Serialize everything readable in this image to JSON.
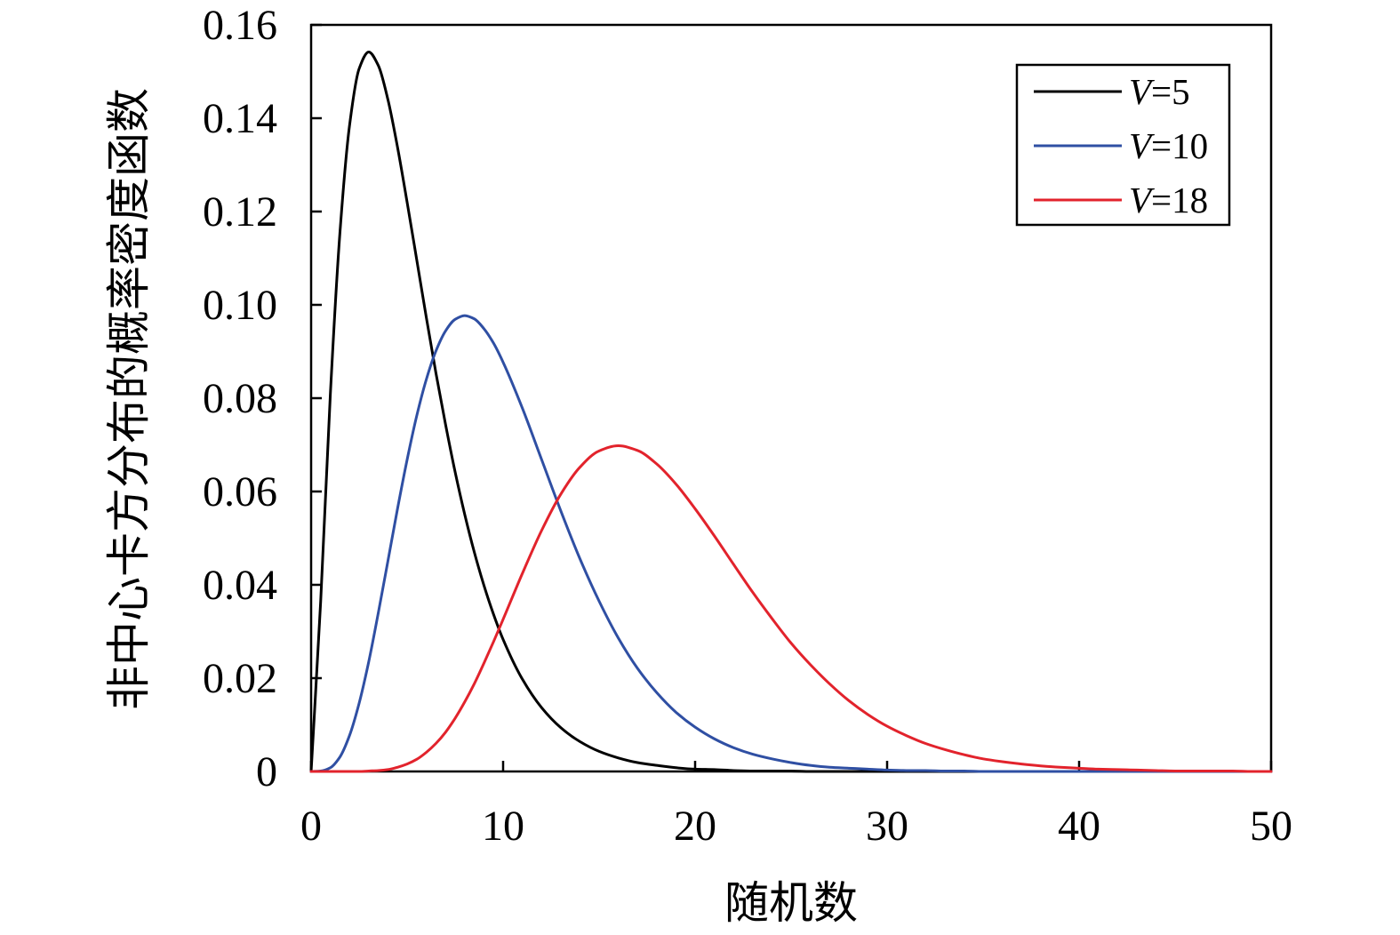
{
  "chart_data": {
    "type": "line",
    "xlabel": "随机数",
    "ylabel": "非中心卡方分布的概率密度函数",
    "xlim": [
      0,
      50
    ],
    "ylim": [
      0,
      0.16
    ],
    "x_ticks": [
      "0",
      "10",
      "20",
      "30",
      "40",
      "50"
    ],
    "y_ticks": [
      "0",
      "0.02",
      "0.04",
      "0.06",
      "0.08",
      "0.10",
      "0.12",
      "0.14",
      "0.16"
    ],
    "grid": false,
    "legend_position": "top-right",
    "x": [
      0,
      0.5,
      1,
      1.5,
      2,
      2.5,
      3,
      3.5,
      4,
      4.5,
      5,
      5.5,
      6,
      6.5,
      7,
      7.5,
      8,
      8.5,
      9,
      9.5,
      10,
      11,
      12,
      13,
      14,
      15,
      16,
      17,
      18,
      19,
      20,
      21,
      22,
      23,
      24,
      25,
      26,
      27,
      28,
      29,
      30,
      31,
      32,
      33,
      34,
      35,
      36,
      37,
      38,
      39,
      40,
      41,
      42,
      43,
      44,
      45,
      46,
      47,
      48,
      49,
      50
    ],
    "series": [
      {
        "name": "V=5",
        "color": "#000000",
        "values": [
          0,
          0.0366,
          0.0807,
          0.1154,
          0.1384,
          0.1506,
          0.1542,
          0.1513,
          0.144,
          0.1338,
          0.122,
          0.1097,
          0.0973,
          0.0854,
          0.0744,
          0.0642,
          0.0551,
          0.047,
          0.0399,
          0.0337,
          0.0283,
          0.0198,
          0.0137,
          0.0094,
          0.0064,
          0.0043,
          0.0029,
          0.0019,
          0.0013,
          0.0008,
          0.0005,
          0.0004,
          0.0002,
          0.0001,
          0.0001,
          0.0001,
          0,
          0,
          0,
          0,
          0,
          0,
          0,
          0,
          0,
          0,
          0,
          0,
          0,
          0,
          0,
          0,
          0,
          0,
          0,
          0,
          0,
          0,
          0,
          0,
          0
        ]
      },
      {
        "name": "V=10",
        "color": "#2f4fa3",
        "values": [
          0,
          0.0001,
          0.0008,
          0.0031,
          0.0077,
          0.0146,
          0.0235,
          0.034,
          0.0451,
          0.0563,
          0.0668,
          0.0762,
          0.084,
          0.0901,
          0.0944,
          0.0969,
          0.0977,
          0.097,
          0.0949,
          0.0918,
          0.0877,
          0.0779,
          0.0669,
          0.0559,
          0.0456,
          0.0365,
          0.0286,
          0.0221,
          0.0169,
          0.0127,
          0.0095,
          0.007,
          0.0051,
          0.0037,
          0.0027,
          0.0019,
          0.0013,
          0.0009,
          0.0007,
          0.0005,
          0.0003,
          0.0002,
          0.0002,
          0.0001,
          0.0001,
          0,
          0,
          0,
          0,
          0,
          0,
          0,
          0,
          0,
          0,
          0,
          0,
          0,
          0,
          0,
          0
        ]
      },
      {
        "name": "V=18",
        "color": "#e2232c",
        "values": [
          0,
          0,
          0,
          0,
          0,
          0,
          0.0001,
          0.0002,
          0.0004,
          0.0009,
          0.0016,
          0.0026,
          0.0041,
          0.006,
          0.0084,
          0.0114,
          0.0149,
          0.0188,
          0.0232,
          0.0278,
          0.0326,
          0.0424,
          0.0516,
          0.0594,
          0.0652,
          0.0687,
          0.0698,
          0.0688,
          0.0659,
          0.0616,
          0.0563,
          0.0505,
          0.0444,
          0.0384,
          0.0328,
          0.0275,
          0.0229,
          0.0188,
          0.0152,
          0.0122,
          0.0097,
          0.0077,
          0.006,
          0.0047,
          0.0036,
          0.0027,
          0.0021,
          0.0016,
          0.0012,
          0.0009,
          0.0007,
          0.0005,
          0.0004,
          0.0003,
          0.0002,
          0.0001,
          0.0001,
          0.0001,
          0.0001,
          0,
          0
        ]
      }
    ]
  }
}
